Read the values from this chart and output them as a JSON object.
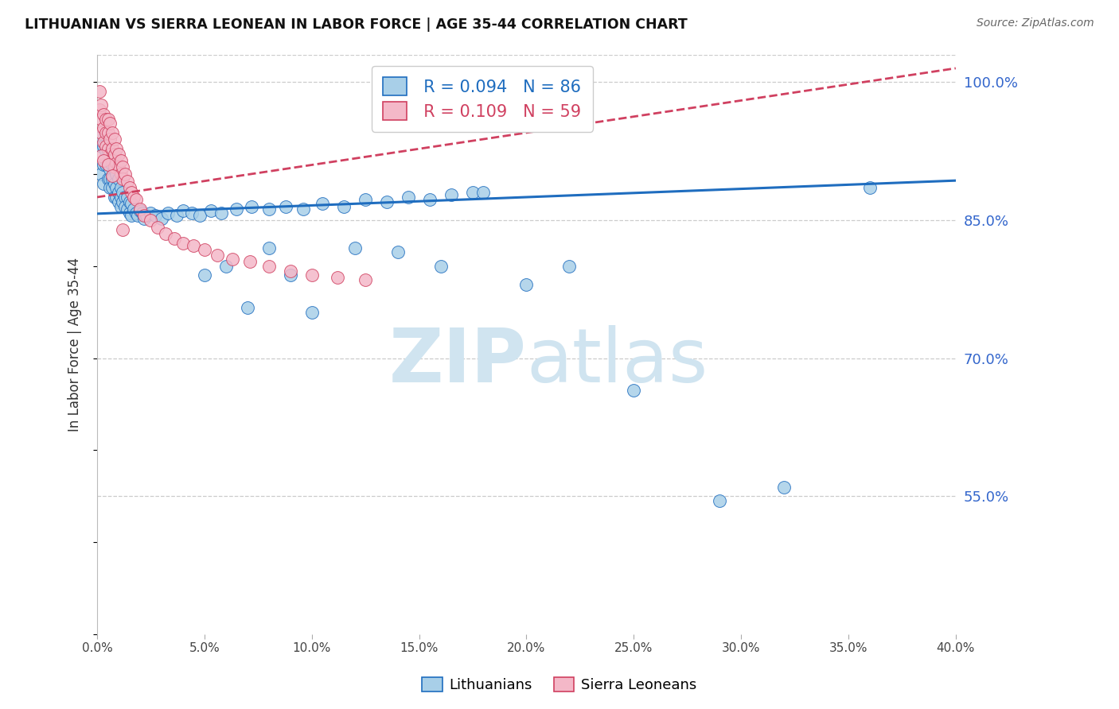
{
  "title": "LITHUANIAN VS SIERRA LEONEAN IN LABOR FORCE | AGE 35-44 CORRELATION CHART",
  "source": "Source: ZipAtlas.com",
  "ylabel": "In Labor Force | Age 35-44",
  "xlim": [
    0.0,
    0.4
  ],
  "ylim": [
    0.4,
    1.03
  ],
  "xticks": [
    0.0,
    0.05,
    0.1,
    0.15,
    0.2,
    0.25,
    0.3,
    0.35,
    0.4
  ],
  "yticks": [
    0.55,
    0.7,
    0.85,
    1.0
  ],
  "ytick_labels": [
    "55.0%",
    "70.0%",
    "85.0%",
    "100.0%"
  ],
  "xtick_labels": [
    "0.0%",
    "5.0%",
    "10.0%",
    "15.0%",
    "20.0%",
    "25.0%",
    "30.0%",
    "35.0%",
    "40.0%"
  ],
  "legend_blue_label": "Lithuanians",
  "legend_pink_label": "Sierra Leoneans",
  "R_blue": 0.094,
  "N_blue": 86,
  "R_pink": 0.109,
  "N_pink": 59,
  "blue_scatter_color": "#a8cfe8",
  "pink_scatter_color": "#f4b8c8",
  "blue_line_color": "#1f6dbf",
  "pink_line_color": "#d04060",
  "watermark_color": "#d0e4f0",
  "blue_x": [
    0.001,
    0.002,
    0.002,
    0.003,
    0.003,
    0.003,
    0.004,
    0.004,
    0.005,
    0.005,
    0.005,
    0.006,
    0.006,
    0.006,
    0.006,
    0.007,
    0.007,
    0.007,
    0.008,
    0.008,
    0.008,
    0.009,
    0.009,
    0.009,
    0.01,
    0.01,
    0.01,
    0.011,
    0.011,
    0.011,
    0.012,
    0.012,
    0.013,
    0.013,
    0.014,
    0.014,
    0.015,
    0.015,
    0.016,
    0.016,
    0.017,
    0.018,
    0.019,
    0.02,
    0.021,
    0.022,
    0.023,
    0.025,
    0.027,
    0.03,
    0.033,
    0.037,
    0.04,
    0.044,
    0.048,
    0.053,
    0.058,
    0.065,
    0.072,
    0.08,
    0.088,
    0.096,
    0.105,
    0.115,
    0.125,
    0.135,
    0.145,
    0.155,
    0.165,
    0.175,
    0.05,
    0.06,
    0.07,
    0.08,
    0.09,
    0.1,
    0.12,
    0.14,
    0.16,
    0.18,
    0.2,
    0.22,
    0.25,
    0.29,
    0.32,
    0.36
  ],
  "blue_y": [
    0.94,
    0.93,
    0.9,
    0.93,
    0.91,
    0.89,
    0.925,
    0.91,
    0.925,
    0.91,
    0.895,
    0.92,
    0.905,
    0.895,
    0.885,
    0.91,
    0.895,
    0.885,
    0.905,
    0.89,
    0.875,
    0.9,
    0.885,
    0.875,
    0.895,
    0.88,
    0.87,
    0.885,
    0.875,
    0.865,
    0.88,
    0.87,
    0.875,
    0.865,
    0.875,
    0.862,
    0.87,
    0.858,
    0.868,
    0.855,
    0.862,
    0.858,
    0.855,
    0.86,
    0.858,
    0.852,
    0.855,
    0.858,
    0.855,
    0.852,
    0.858,
    0.855,
    0.86,
    0.858,
    0.855,
    0.86,
    0.858,
    0.862,
    0.865,
    0.862,
    0.865,
    0.862,
    0.868,
    0.865,
    0.872,
    0.87,
    0.875,
    0.872,
    0.878,
    0.88,
    0.79,
    0.8,
    0.755,
    0.82,
    0.79,
    0.75,
    0.82,
    0.815,
    0.8,
    0.88,
    0.78,
    0.8,
    0.665,
    0.545,
    0.56,
    0.885
  ],
  "pink_x": [
    0.001,
    0.001,
    0.002,
    0.002,
    0.002,
    0.003,
    0.003,
    0.003,
    0.004,
    0.004,
    0.004,
    0.005,
    0.005,
    0.005,
    0.006,
    0.006,
    0.006,
    0.007,
    0.007,
    0.007,
    0.008,
    0.008,
    0.008,
    0.009,
    0.009,
    0.01,
    0.01,
    0.011,
    0.011,
    0.012,
    0.012,
    0.013,
    0.014,
    0.015,
    0.016,
    0.017,
    0.018,
    0.02,
    0.022,
    0.025,
    0.028,
    0.032,
    0.036,
    0.04,
    0.045,
    0.05,
    0.056,
    0.063,
    0.071,
    0.08,
    0.09,
    0.1,
    0.112,
    0.125,
    0.002,
    0.003,
    0.005,
    0.007,
    0.012
  ],
  "pink_y": [
    0.99,
    0.97,
    0.975,
    0.96,
    0.945,
    0.965,
    0.95,
    0.935,
    0.96,
    0.945,
    0.93,
    0.96,
    0.945,
    0.928,
    0.955,
    0.938,
    0.922,
    0.945,
    0.928,
    0.915,
    0.938,
    0.922,
    0.908,
    0.928,
    0.912,
    0.922,
    0.908,
    0.915,
    0.9,
    0.908,
    0.895,
    0.9,
    0.892,
    0.885,
    0.88,
    0.875,
    0.872,
    0.862,
    0.855,
    0.85,
    0.842,
    0.835,
    0.83,
    0.825,
    0.822,
    0.818,
    0.812,
    0.808,
    0.805,
    0.8,
    0.795,
    0.79,
    0.788,
    0.785,
    0.92,
    0.915,
    0.91,
    0.898,
    0.84
  ]
}
